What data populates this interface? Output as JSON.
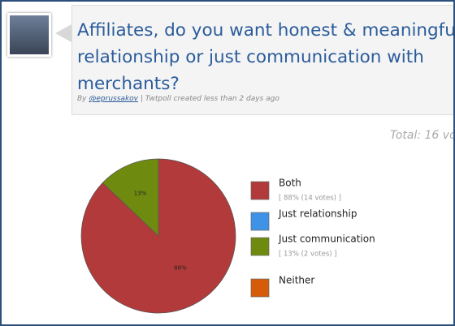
{
  "header": {
    "question": "Affiliates, do you want honest & meaningful relationship or just communication with merchants?",
    "by": "By",
    "author": "@eprussakov",
    "meta": "| Twtpoll created less than 2 days ago",
    "total": "Total: 16 vo"
  },
  "chart_data": {
    "type": "pie",
    "categories": [
      "Both",
      "Just relationship",
      "Just communication",
      "Neither"
    ],
    "values": [
      88,
      0,
      13,
      0
    ],
    "value_labels": [
      "88%",
      null,
      "13%",
      null
    ],
    "details": [
      "[ 88% (14 votes) ]",
      null,
      "[ 13% (2 votes) ]",
      null
    ],
    "colors": [
      "#b23a3a",
      "#3f93e6",
      "#6e8b10",
      "#d65c0a"
    ]
  }
}
